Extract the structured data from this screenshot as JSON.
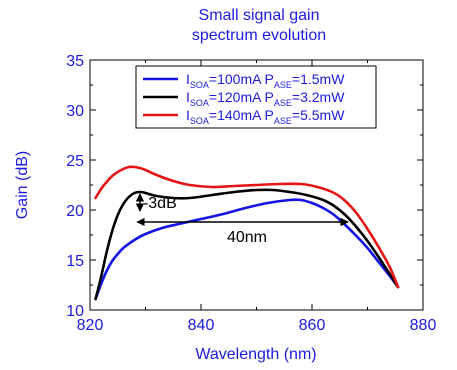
{
  "chart_data": {
    "type": "line",
    "title": [
      "Small signal gain",
      "spectrum evolution"
    ],
    "xlabel": "Wavelength (nm)",
    "ylabel": "Gain (dB)",
    "xlim": [
      820,
      880
    ],
    "ylim": [
      10,
      35
    ],
    "xticks": [
      "820",
      "840",
      "860",
      "880"
    ],
    "yticks": [
      "10",
      "15",
      "20",
      "25",
      "30",
      "35"
    ],
    "grid": false,
    "legend_position": "top-right",
    "series": [
      {
        "color": "#1414e6",
        "legend": {
          "pre": "I",
          "sub1": "SOA",
          "mid": "=100mA P",
          "sub2": "ASE",
          "post": "=1.5mW"
        },
        "x": [
          821,
          822,
          823,
          824,
          825,
          826,
          828,
          830,
          833,
          836,
          840,
          844,
          848,
          852,
          856,
          858,
          860,
          862,
          864,
          866,
          868,
          870,
          872,
          874,
          875.5
        ],
        "y": [
          11.1,
          12.6,
          13.9,
          14.9,
          15.6,
          16.2,
          17.0,
          17.6,
          18.2,
          18.6,
          19.1,
          19.6,
          20.2,
          20.7,
          21.0,
          21.0,
          20.7,
          20.2,
          19.5,
          18.5,
          17.4,
          16.2,
          14.8,
          13.4,
          12.3
        ]
      },
      {
        "color": "#000000",
        "legend": {
          "pre": "I",
          "sub1": "SOA",
          "mid": "=120mA P",
          "sub2": "ASE",
          "post": "=3.2mW"
        },
        "x": [
          821,
          822,
          823,
          824,
          825,
          826,
          827,
          828,
          829,
          830,
          832,
          835,
          838,
          842,
          846,
          850,
          853,
          856,
          859,
          862,
          864,
          866,
          868,
          870,
          872,
          874,
          875.5
        ],
        "y": [
          11.1,
          13.3,
          15.8,
          17.9,
          19.5,
          20.6,
          21.3,
          21.7,
          21.8,
          21.7,
          21.4,
          21.2,
          21.2,
          21.5,
          21.8,
          22.0,
          22.0,
          21.8,
          21.5,
          21.0,
          20.4,
          19.5,
          18.3,
          16.9,
          15.3,
          13.6,
          12.3
        ]
      },
      {
        "color": "#e61414",
        "legend": {
          "pre": "I",
          "sub1": "SOA",
          "mid": "=140mA P",
          "sub2": "ASE",
          "post": "=5.5mW"
        },
        "x": [
          821,
          822,
          823,
          824,
          825,
          826,
          827,
          828,
          829,
          830,
          832,
          835,
          838,
          842,
          846,
          850,
          854,
          858,
          861,
          864,
          866,
          868,
          870,
          872,
          874,
          875.5
        ],
        "y": [
          21.2,
          22.1,
          22.8,
          23.4,
          23.8,
          24.1,
          24.3,
          24.3,
          24.2,
          24.0,
          23.5,
          22.9,
          22.5,
          22.3,
          22.4,
          22.5,
          22.6,
          22.6,
          22.3,
          21.7,
          20.9,
          19.7,
          18.1,
          16.3,
          14.3,
          12.3
        ]
      }
    ],
    "annotations": {
      "dip_label": "-3dB",
      "width_label": "40nm",
      "dip_arrow": {
        "x": 829,
        "y_top": 21.8,
        "y_bottom": 19.8
      },
      "width_arrow": {
        "x_start": 828.5,
        "x_end": 866.5,
        "y": 18.8
      }
    }
  }
}
